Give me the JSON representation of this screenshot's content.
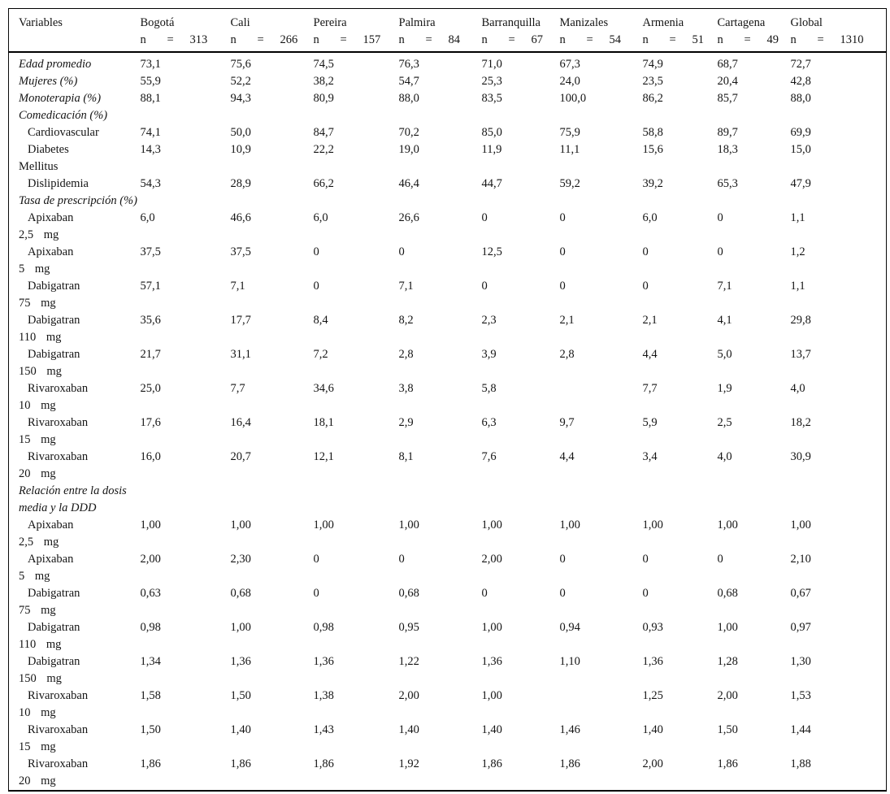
{
  "table": {
    "variables_header": "Variables",
    "n_label": "n",
    "eq_label": "=",
    "columns": [
      {
        "city": "Bogotá",
        "n": "313"
      },
      {
        "city": "Cali",
        "n": "266"
      },
      {
        "city": "Pereira",
        "n": "157"
      },
      {
        "city": "Palmira",
        "n": "84"
      },
      {
        "city": "Barranquilla",
        "n": "67"
      },
      {
        "city": "Manizales",
        "n": "54"
      },
      {
        "city": "Armenia",
        "n": "51"
      },
      {
        "city": "Cartagena",
        "n": "49"
      },
      {
        "city": "Global",
        "n": "1310"
      }
    ],
    "rows": [
      {
        "label": "Edad promedio",
        "italic": true,
        "values": [
          "73,1",
          "75,6",
          "74,5",
          "76,3",
          "71,0",
          "67,3",
          "74,9",
          "68,7",
          "72,7"
        ]
      },
      {
        "label": "Mujeres (%)",
        "italic": true,
        "values": [
          "55,9",
          "52,2",
          "38,2",
          "54,7",
          "25,3",
          "24,0",
          "23,5",
          "20,4",
          "42,8"
        ]
      },
      {
        "label": "Monoterapia (%)",
        "italic": true,
        "values": [
          "88,1",
          "94,3",
          "80,9",
          "88,0",
          "83,5",
          "100,0",
          "86,2",
          "85,7",
          "88,0"
        ]
      },
      {
        "label": "Comedicación (%)",
        "italic": true,
        "section": true,
        "values": []
      },
      {
        "label": "Cardiovascular",
        "indent": true,
        "values": [
          "74,1",
          "50,0",
          "84,7",
          "70,2",
          "85,0",
          "75,9",
          "58,8",
          "89,7",
          "69,9"
        ]
      },
      {
        "label": "Diabetes",
        "label2": "Mellitus",
        "indent": true,
        "values": [
          "14,3",
          "10,9",
          "22,2",
          "19,0",
          "11,9",
          "11,1",
          "15,6",
          "18,3",
          "15,0"
        ]
      },
      {
        "label": "Dislipidemia",
        "indent": true,
        "values": [
          "54,3",
          "28,9",
          "66,2",
          "46,4",
          "44,7",
          "59,2",
          "39,2",
          "65,3",
          "47,9"
        ]
      },
      {
        "label": "Tasa de prescripción (%)",
        "italic": true,
        "section": true,
        "values": []
      },
      {
        "label": "Apixaban",
        "label2": "2,5 mg",
        "indent": true,
        "values": [
          "6,0",
          "46,6",
          "6,0",
          "26,6",
          "0",
          "0",
          "6,0",
          "0",
          "1,1"
        ]
      },
      {
        "label": "Apixaban",
        "label2": "5 mg",
        "indent": true,
        "values": [
          "37,5",
          "37,5",
          "0",
          "0",
          "12,5",
          "0",
          "0",
          "0",
          "1,2"
        ]
      },
      {
        "label": "Dabigatran",
        "label2": "75 mg",
        "indent": true,
        "values": [
          "57,1",
          "7,1",
          "0",
          "7,1",
          "0",
          "0",
          "0",
          "7,1",
          "1,1"
        ]
      },
      {
        "label": "Dabigatran",
        "label2": "110 mg",
        "indent": true,
        "values": [
          "35,6",
          "17,7",
          "8,4",
          "8,2",
          "2,3",
          "2,1",
          "2,1",
          "4,1",
          "29,8"
        ]
      },
      {
        "label": "Dabigatran",
        "label2": "150 mg",
        "indent": true,
        "values": [
          "21,7",
          "31,1",
          "7,2",
          "2,8",
          "3,9",
          "2,8",
          "4,4",
          "5,0",
          "13,7"
        ]
      },
      {
        "label": "Rivaroxaban",
        "label2": "10 mg",
        "indent": true,
        "values": [
          "25,0",
          "7,7",
          "34,6",
          "3,8",
          "5,8",
          null,
          "7,7",
          "1,9",
          "4,0"
        ]
      },
      {
        "label": "Rivaroxaban",
        "label2": "15 mg",
        "indent": true,
        "values": [
          "17,6",
          "16,4",
          "18,1",
          "2,9",
          "6,3",
          "9,7",
          "5,9",
          "2,5",
          "18,2"
        ]
      },
      {
        "label": "Rivaroxaban",
        "label2": "20 mg",
        "indent": true,
        "values": [
          "16,0",
          "20,7",
          "12,1",
          "8,1",
          "7,6",
          "4,4",
          "3,4",
          "4,0",
          "30,9"
        ]
      },
      {
        "label": "Relación entre la dosis media y la DDD",
        "italic": true,
        "section": true,
        "values": []
      },
      {
        "label": "Apixaban",
        "label2": "2,5 mg",
        "indent": true,
        "values": [
          "1,00",
          "1,00",
          "1,00",
          "1,00",
          "1,00",
          "1,00",
          "1,00",
          "1,00",
          "1,00"
        ]
      },
      {
        "label": "Apixaban",
        "label2": "5 mg",
        "indent": true,
        "values": [
          "2,00",
          "2,30",
          "0",
          "0",
          "2,00",
          "0",
          "0",
          "0",
          "2,10"
        ]
      },
      {
        "label": "Dabigatran",
        "label2": "75 mg",
        "indent": true,
        "values": [
          "0,63",
          "0,68",
          "0",
          "0,68",
          "0",
          "0",
          "0",
          "0,68",
          "0,67"
        ]
      },
      {
        "label": "Dabigatran",
        "label2": "110 mg",
        "indent": true,
        "values": [
          "0,98",
          "1,00",
          "0,98",
          "0,95",
          "1,00",
          "0,94",
          "0,93",
          "1,00",
          "0,97"
        ]
      },
      {
        "label": "Dabigatran",
        "label2": "150 mg",
        "indent": true,
        "values": [
          "1,34",
          "1,36",
          "1,36",
          "1,22",
          "1,36",
          "1,10",
          "1,36",
          "1,28",
          "1,30"
        ]
      },
      {
        "label": "Rivaroxaban",
        "label2": "10 mg",
        "indent": true,
        "values": [
          "1,58",
          "1,50",
          "1,38",
          "2,00",
          "1,00",
          null,
          "1,25",
          "2,00",
          "1,53"
        ]
      },
      {
        "label": "Rivaroxaban",
        "label2": "15 mg",
        "indent": true,
        "values": [
          "1,50",
          "1,40",
          "1,43",
          "1,40",
          "1,40",
          "1,46",
          "1,40",
          "1,50",
          "1,44"
        ]
      },
      {
        "label": "Rivaroxaban",
        "label2": "20 mg",
        "indent": true,
        "values": [
          "1,86",
          "1,86",
          "1,86",
          "1,92",
          "1,86",
          "1,86",
          "2,00",
          "1,86",
          "1,88"
        ]
      }
    ]
  }
}
